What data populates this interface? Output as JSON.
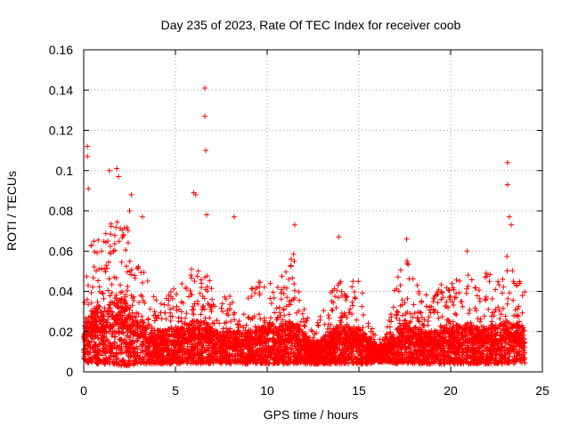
{
  "chart_data": {
    "type": "scatter",
    "title": "Day 235 of 2023, Rate Of TEC Index for receiver coob",
    "xlabel": "GPS time / hours",
    "ylabel": "ROTI / TECUs",
    "xlim": [
      0,
      25
    ],
    "ylim": [
      0,
      0.16
    ],
    "xticks": [
      0,
      5,
      10,
      15,
      20,
      25
    ],
    "yticks": [
      0,
      0.02,
      0.04,
      0.06,
      0.08,
      0.1,
      0.12,
      0.14,
      0.16
    ],
    "xtick_labels": [
      "0",
      "5",
      "10",
      "15",
      "20",
      "25"
    ],
    "ytick_labels": [
      "0",
      "0.02",
      "0.04",
      "0.06",
      "0.08",
      "0.1",
      "0.12",
      "0.14",
      "0.16"
    ],
    "grid": true,
    "marker": "+",
    "color": "#ff0000",
    "series": [
      {
        "name": "ROTI",
        "description": "dense scatter of ROTI values across 24 hours, mostly 0.005-0.03 with spikes",
        "outliers": [
          {
            "x": 0.2,
            "y": 0.112
          },
          {
            "x": 0.2,
            "y": 0.107
          },
          {
            "x": 0.25,
            "y": 0.091
          },
          {
            "x": 1.4,
            "y": 0.1
          },
          {
            "x": 1.8,
            "y": 0.101
          },
          {
            "x": 1.9,
            "y": 0.097
          },
          {
            "x": 2.5,
            "y": 0.08
          },
          {
            "x": 2.6,
            "y": 0.088
          },
          {
            "x": 3.2,
            "y": 0.077
          },
          {
            "x": 6.0,
            "y": 0.089
          },
          {
            "x": 6.1,
            "y": 0.088
          },
          {
            "x": 6.6,
            "y": 0.141
          },
          {
            "x": 6.6,
            "y": 0.127
          },
          {
            "x": 6.65,
            "y": 0.11
          },
          {
            "x": 6.7,
            "y": 0.078
          },
          {
            "x": 8.2,
            "y": 0.077
          },
          {
            "x": 11.5,
            "y": 0.073
          },
          {
            "x": 13.9,
            "y": 0.067
          },
          {
            "x": 17.6,
            "y": 0.066
          },
          {
            "x": 20.9,
            "y": 0.06
          },
          {
            "x": 23.1,
            "y": 0.104
          },
          {
            "x": 23.1,
            "y": 0.093
          },
          {
            "x": 23.2,
            "y": 0.077
          },
          {
            "x": 23.3,
            "y": 0.073
          }
        ],
        "envelope": {
          "hours": [
            0,
            0.5,
            1,
            1.5,
            2,
            2.5,
            3,
            3.5,
            4,
            4.5,
            5,
            5.5,
            6,
            6.5,
            7,
            7.5,
            8,
            8.5,
            9,
            9.5,
            10,
            10.5,
            11,
            11.5,
            12,
            12.5,
            13,
            13.5,
            14,
            14.5,
            15,
            15.5,
            16,
            16.5,
            17,
            17.5,
            18,
            18.5,
            19,
            19.5,
            20,
            20.5,
            21,
            21.5,
            22,
            22.5,
            23,
            23.5,
            24
          ],
          "typical_max": [
            0.05,
            0.07,
            0.065,
            0.075,
            0.08,
            0.07,
            0.06,
            0.045,
            0.035,
            0.04,
            0.045,
            0.045,
            0.06,
            0.055,
            0.045,
            0.035,
            0.045,
            0.035,
            0.04,
            0.045,
            0.05,
            0.045,
            0.05,
            0.06,
            0.035,
            0.02,
            0.03,
            0.04,
            0.05,
            0.045,
            0.05,
            0.03,
            0.015,
            0.02,
            0.045,
            0.06,
            0.045,
            0.04,
            0.04,
            0.045,
            0.045,
            0.05,
            0.05,
            0.045,
            0.05,
            0.045,
            0.06,
            0.05,
            0.045
          ],
          "typical_min": [
            0.005,
            0.004,
            0.004,
            0.004,
            0.003,
            0.003,
            0.004,
            0.004,
            0.004,
            0.004,
            0.004,
            0.004,
            0.004,
            0.004,
            0.004,
            0.004,
            0.004,
            0.004,
            0.004,
            0.004,
            0.004,
            0.004,
            0.004,
            0.004,
            0.004,
            0.004,
            0.004,
            0.004,
            0.004,
            0.004,
            0.004,
            0.004,
            0.005,
            0.005,
            0.004,
            0.004,
            0.004,
            0.004,
            0.004,
            0.004,
            0.004,
            0.004,
            0.004,
            0.004,
            0.004,
            0.004,
            0.004,
            0.004,
            0.004
          ],
          "typical_center": [
            0.015,
            0.02,
            0.02,
            0.022,
            0.025,
            0.02,
            0.018,
            0.015,
            0.013,
            0.013,
            0.014,
            0.014,
            0.016,
            0.016,
            0.014,
            0.012,
            0.013,
            0.012,
            0.013,
            0.014,
            0.015,
            0.015,
            0.015,
            0.016,
            0.012,
            0.009,
            0.011,
            0.013,
            0.015,
            0.014,
            0.014,
            0.011,
            0.008,
            0.009,
            0.013,
            0.016,
            0.014,
            0.013,
            0.013,
            0.014,
            0.014,
            0.015,
            0.015,
            0.014,
            0.015,
            0.014,
            0.016,
            0.015,
            0.014
          ]
        }
      }
    ]
  }
}
